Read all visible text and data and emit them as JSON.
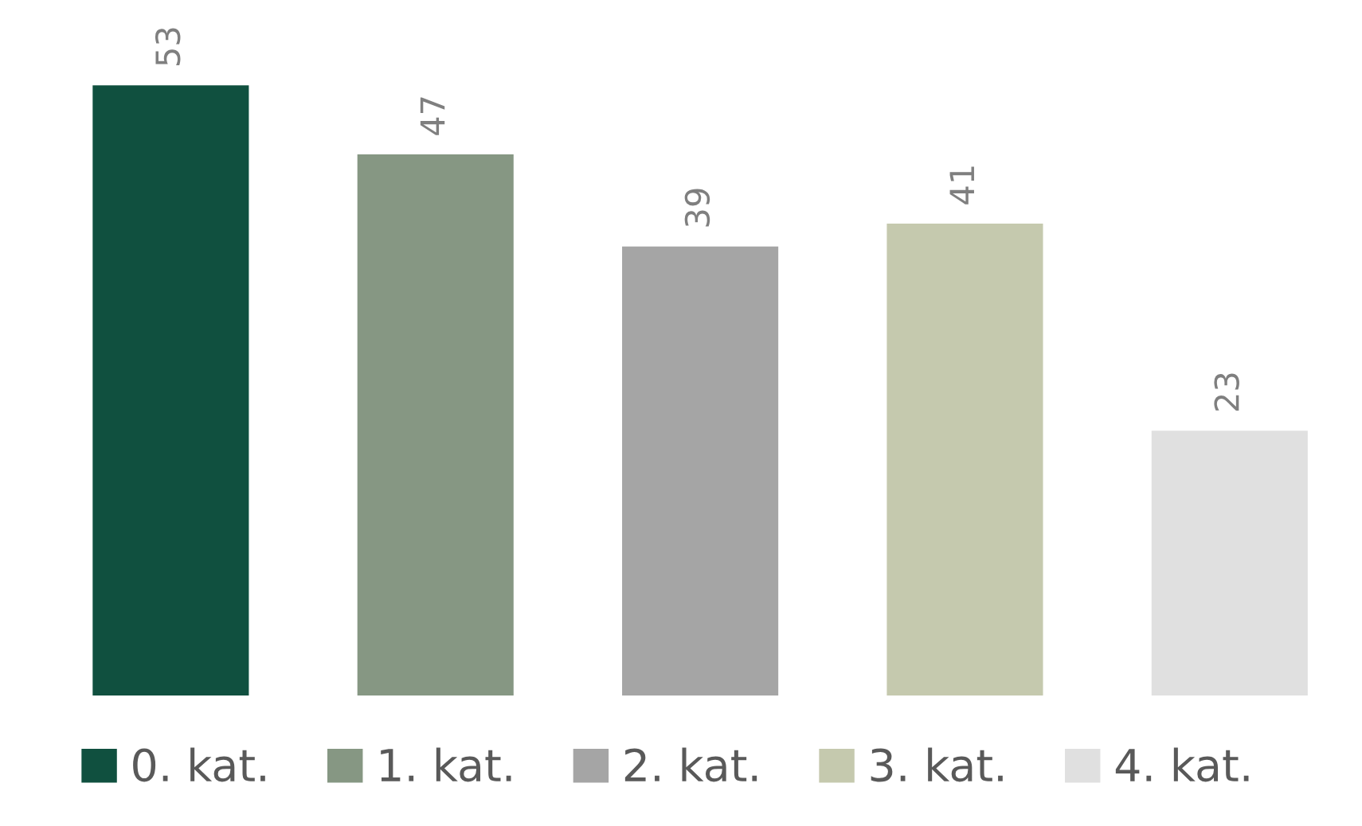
{
  "chart_data": {
    "type": "bar",
    "stacked": true,
    "categories": [
      null,
      null,
      null,
      null,
      null
    ],
    "series": [
      {
        "name": "0. kat.",
        "color": "#10503f",
        "values": [
          53,
          null,
          null,
          null,
          null
        ]
      },
      {
        "name": "1. kat.",
        "color": "#869783",
        "values": [
          null,
          47,
          null,
          null,
          null
        ]
      },
      {
        "name": "2. kat.",
        "color": "#a5a5a5",
        "values": [
          null,
          null,
          39,
          null,
          null
        ]
      },
      {
        "name": "3. kat.",
        "color": "#c5c9ae",
        "values": [
          null,
          null,
          null,
          41,
          null
        ]
      },
      {
        "name": "4. kat.",
        "color": "#e0e0e0",
        "values": [
          null,
          null,
          null,
          null,
          23
        ]
      }
    ],
    "data_labels": true,
    "legend": "bottom",
    "grid": false
  }
}
